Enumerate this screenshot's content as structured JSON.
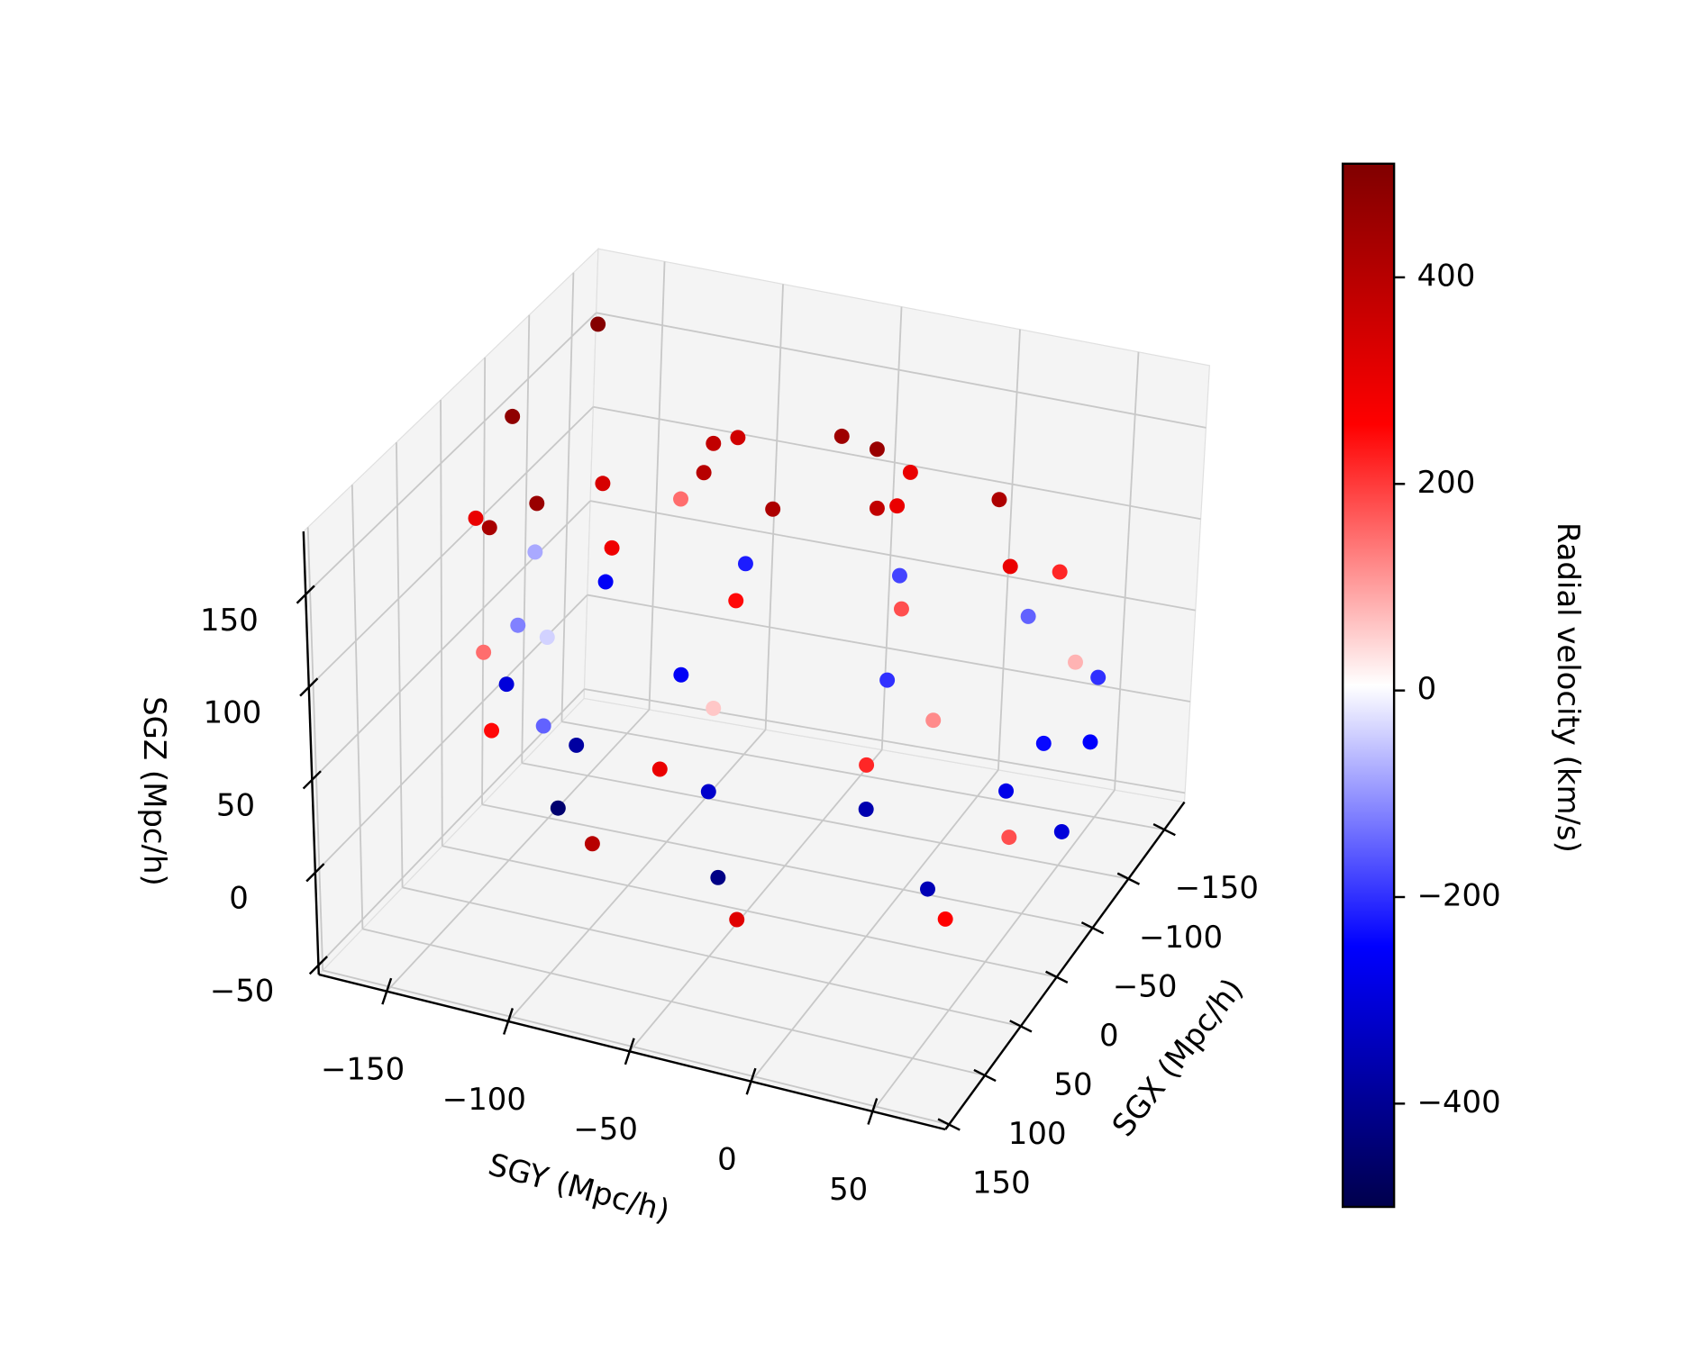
{
  "chart_data": {
    "type": "scatter3d",
    "xlabel": "SGX (Mpc/h)",
    "ylabel": "SGY (Mpc/h)",
    "zlabel": "SGZ (Mpc/h)",
    "colorbar_label": "Radial velocity (km/s)",
    "xlim": [
      -178,
      155
    ],
    "ylim": [
      -178,
      80
    ],
    "zlim": [
      -55,
      184
    ],
    "clim": [
      -500,
      510
    ],
    "xticks": [
      {
        "value": -150,
        "label": "−150"
      },
      {
        "value": -100,
        "label": "−100"
      },
      {
        "value": -50,
        "label": "−50"
      },
      0,
      50,
      100,
      150
    ],
    "yticks": [
      {
        "value": -150,
        "label": "−150"
      },
      {
        "value": -100,
        "label": "−100"
      },
      {
        "value": -50,
        "label": "−50"
      },
      0,
      50
    ],
    "zticks": [
      {
        "value": -50,
        "label": "−50"
      },
      0,
      50,
      100,
      150
    ],
    "cticks": [
      {
        "value": -400,
        "label": "−400"
      },
      {
        "value": -200,
        "label": "−200"
      },
      0,
      200,
      400
    ],
    "colormap": [
      "#00004c",
      "#0000ff",
      "#ffffff",
      "#ff0000",
      "#800000"
    ],
    "grid": true,
    "points": {
      "x": [
        1,
        -20,
        -60,
        -81,
        -60,
        -20,
        45,
        20,
        -40,
        -100,
        -125,
        -100,
        -40,
        20,
        73,
        40,
        -40,
        -120,
        -153,
        -120,
        -40,
        40,
        80,
        64,
        20,
        -40,
        -100,
        -144,
        -160,
        -144,
        -100,
        -40,
        20,
        64,
        69,
        37,
        -40,
        -117,
        -149,
        -117,
        -40,
        37,
        45,
        3,
        -83,
        -125,
        -83,
        3,
        -60,
        -20,
        10,
        -90,
        30,
        50,
        -130
      ],
      "y": [
        -40,
        -4,
        -4,
        -40,
        -76,
        -76,
        -40,
        20,
        45,
        20,
        -40,
        -100,
        -125,
        -100,
        -40,
        40,
        73,
        40,
        -40,
        -120,
        -153,
        -120,
        -40,
        20,
        64,
        80,
        64,
        20,
        -40,
        -100,
        -144,
        -160,
        -144,
        -100,
        -40,
        37,
        69,
        37,
        -40,
        -117,
        -149,
        -117,
        -40,
        34,
        34,
        -40,
        -114,
        -114,
        -170,
        -165,
        -160,
        -170,
        -150,
        -140,
        -160
      ],
      "z": [
        163,
        163,
        163,
        163,
        163,
        163,
        135,
        135,
        135,
        135,
        135,
        135,
        135,
        135,
        91,
        91,
        91,
        91,
        91,
        91,
        91,
        91,
        50,
        50,
        50,
        50,
        50,
        50,
        50,
        50,
        50,
        50,
        50,
        50,
        -1,
        -1,
        -1,
        -1,
        -1,
        -1,
        -1,
        -1,
        -35,
        -35,
        -35,
        -35,
        -35,
        -35,
        150,
        110,
        130,
        90,
        70,
        40,
        170
      ],
      "c": [
        420,
        380,
        300,
        450,
        350,
        400,
        250,
        180,
        300,
        420,
        460,
        380,
        340,
        290,
        60,
        120,
        80,
        220,
        300,
        150,
        -80,
        -40,
        -320,
        -360,
        -280,
        -250,
        -200,
        -150,
        -180,
        -220,
        -260,
        -120,
        -300,
        -380,
        -420,
        -350,
        -300,
        -240,
        -200,
        -260,
        -150,
        -450,
        320,
        260,
        180,
        220,
        300,
        400,
        480,
        430,
        300,
        460,
        150,
        250,
        500
      ]
    }
  }
}
